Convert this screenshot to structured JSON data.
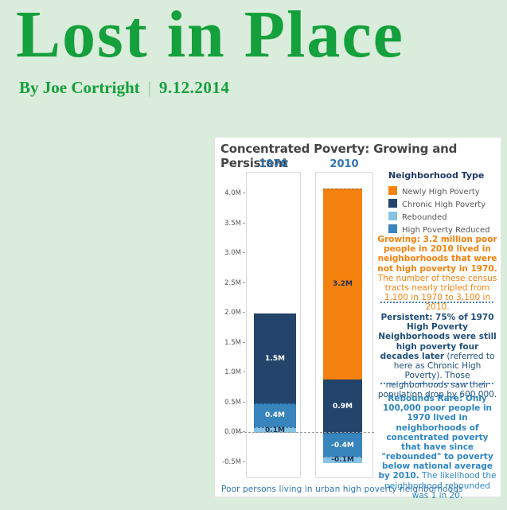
{
  "page": {
    "title": "Lost in Place",
    "byline_author": "By Joe Cortright",
    "byline_separator": "|",
    "byline_date": "9.12.2014",
    "colors": {
      "background": "#daecdb",
      "title_green": "#14a03c"
    }
  },
  "chart": {
    "title": "Concentrated Poverty: Growing and Persistent",
    "footer": "Poor persons living in urban high poverty neighborhoods",
    "columns": [
      {
        "label": "1970"
      },
      {
        "label": "2010"
      }
    ],
    "legend": {
      "title": "Neighborhood Type",
      "items": [
        {
          "label": "Newly High Poverty",
          "color": "#f5820f"
        },
        {
          "label": "Chronic High Poverty",
          "color": "#24456b"
        },
        {
          "label": "Rebounded",
          "color": "#85c2e4"
        },
        {
          "label": "High Poverty Reduced",
          "color": "#3884bd"
        }
      ]
    },
    "annotations": {
      "growing": {
        "heading": "Growing:",
        "bold": " 3.2 million poor people in 2010 lived in neighborhoods that were not high poverty in 1970.",
        "normal": " The number of these census tracts nearly tripled from 1,100 in 1970 to 3,100 in 2010.",
        "color": "#f5820f"
      },
      "persistent": {
        "heading": "Persistent:",
        "bold": " 75% of 1970 High Poverty Neighborhoods were still high poverty four decades later",
        "normal": " (referred to here as Chronic High Poverty). Those neighborhoods saw their population drop by 600,000.",
        "color": "#1f4e79"
      },
      "rebounds": {
        "heading": "Rebounds Rare:",
        "bold": " Only 100,000 poor people in 1970 lived in neighborhoods of concentrated poverty that have since \"rebounded\" to poverty below national average by 2010.",
        "normal": " The likelihood the neighborhood rebounded was 1 in 20.",
        "color": "#2e86c5"
      }
    },
    "colors": {
      "separator": "#4a7ebb",
      "column_header_blue": "#2e74b5",
      "footer_blue": "#2e74b5",
      "title_gray": "#454545"
    }
  },
  "chart_data": {
    "type": "bar",
    "stacked": true,
    "title": "Concentrated Poverty: Growing and Persistent",
    "note": "Poor persons living in urban high poverty neighborhoods",
    "categories": [
      "1970",
      "2010"
    ],
    "series": [
      {
        "name": "Newly High Poverty",
        "color": "#f5820f",
        "label_color": "#1d2f4e",
        "values": [
          0,
          3.2
        ]
      },
      {
        "name": "Chronic High Poverty",
        "color": "#24456b",
        "label_color": "#ffffff",
        "values": [
          1.5,
          0.9
        ]
      },
      {
        "name": "High Poverty Reduced",
        "color": "#3884bd",
        "label_color": "#ffffff",
        "values": [
          0.4,
          -0.4
        ]
      },
      {
        "name": "Rebounded",
        "color": "#85c2e4",
        "label_color": "#1d2f4e",
        "values": [
          0.1,
          -0.1
        ]
      }
    ],
    "bar_totals": {
      "1970": 2.0,
      "2010_positive": 4.1,
      "2010_negative": -0.5
    },
    "y_ticks": [
      4.0,
      3.5,
      3.0,
      2.5,
      2.0,
      1.5,
      1.0,
      0.5,
      0.0,
      -0.5
    ],
    "y_tick_suffix": "M",
    "ylim": [
      -0.75,
      4.35
    ],
    "zero_line": true,
    "legend_position": "right",
    "grid": false
  }
}
